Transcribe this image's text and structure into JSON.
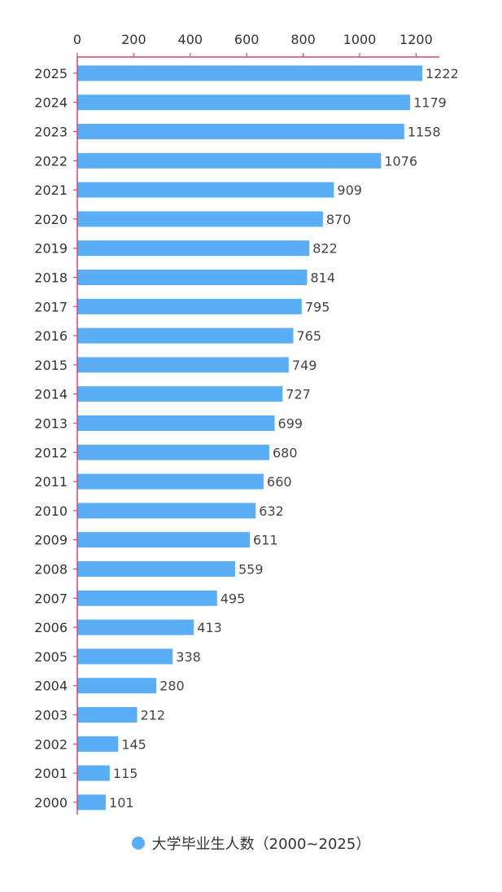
{
  "chart_data": {
    "type": "bar",
    "orientation": "horizontal",
    "categories": [
      "2025",
      "2024",
      "2023",
      "2022",
      "2021",
      "2020",
      "2019",
      "2018",
      "2017",
      "2016",
      "2015",
      "2014",
      "2013",
      "2012",
      "2011",
      "2010",
      "2009",
      "2008",
      "2007",
      "2006",
      "2005",
      "2004",
      "2003",
      "2002",
      "2001",
      "2000"
    ],
    "series": [
      {
        "name": "大学毕业生人数（2000~2025）",
        "values": [
          1222,
          1179,
          1158,
          1076,
          909,
          870,
          822,
          814,
          795,
          765,
          749,
          727,
          699,
          680,
          660,
          632,
          611,
          559,
          495,
          413,
          338,
          280,
          212,
          145,
          115,
          101
        ]
      }
    ],
    "x_ticks": [
      "0",
      "200",
      "400",
      "600",
      "800",
      "1000",
      "1200"
    ],
    "xlim": [
      0,
      1280
    ],
    "x_axis_position": "top",
    "grid": false,
    "data_labels": true,
    "legend_position": "bottom-center",
    "colors": {
      "bar": "#5aaef5",
      "axis": "#e0416f",
      "legend_swatch": "#5aaef5"
    }
  }
}
